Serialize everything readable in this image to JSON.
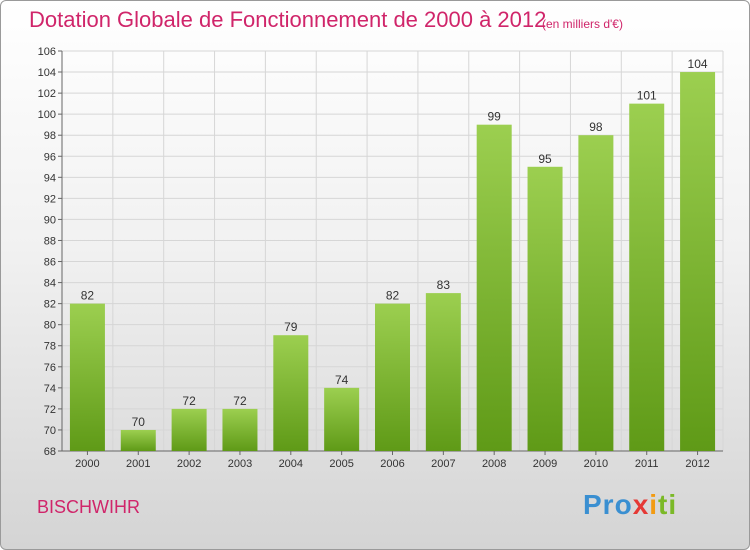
{
  "header": {
    "title": "Dotation Globale de Fonctionnement de 2000 à 2012",
    "subtitle": "(en milliers d'€)"
  },
  "footer": {
    "commune": "BISCHWIHR",
    "brand": {
      "p1": "Pro",
      "p2": "x",
      "p3": "i",
      "p4": "ti"
    }
  },
  "colors": {
    "bar_top": "#9ccf50",
    "bar_bottom": "#5f9a17",
    "title": "#d0256a"
  },
  "chart_data": {
    "type": "bar",
    "title": "Dotation Globale de Fonctionnement de 2000 à 2012",
    "subtitle": "(en milliers d'€)",
    "categories": [
      "2000",
      "2001",
      "2002",
      "2003",
      "2004",
      "2005",
      "2006",
      "2007",
      "2008",
      "2009",
      "2010",
      "2011",
      "2012"
    ],
    "values": [
      82,
      70,
      72,
      72,
      79,
      74,
      82,
      83,
      99,
      95,
      98,
      101,
      104
    ],
    "ylim": [
      68,
      106
    ],
    "yticks": [
      68,
      70,
      72,
      74,
      76,
      78,
      80,
      82,
      84,
      86,
      88,
      90,
      92,
      94,
      96,
      98,
      100,
      102,
      104,
      106
    ],
    "grid": true,
    "data_labels": true
  }
}
